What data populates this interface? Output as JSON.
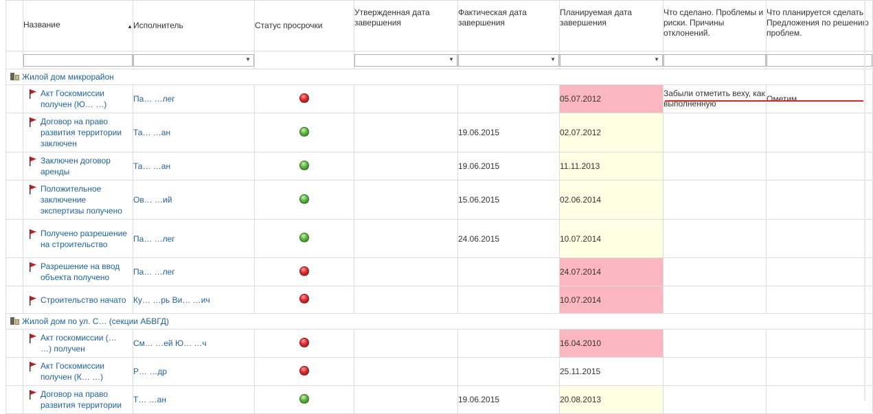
{
  "columns": {
    "name": "Название",
    "executor": "Исполнитель",
    "overdue_status": "Статус просрочки",
    "approved_date": "Утвержденная дата завершения",
    "actual_date": "Фактическая дата завершения",
    "planned_date": "Планируемая дата завершения",
    "done_problems": "Что сделано. Проблемы и риски. Причины отклонений.",
    "planned_proposals": "Что планируется сделать. Предложения по решению проблем."
  },
  "colors": {
    "link": "#1a62a8",
    "overdue_pink": "#fbb7c0",
    "pending_yellow": "#ffffe3",
    "status_red": "#e12b2b",
    "status_green": "#59b63c",
    "annotation_red": "#e2231a"
  },
  "groups": [
    {
      "label_visible": "Жилой дом микрорайон",
      "icon": "folder-icon",
      "rows": [
        {
          "name": "Акт Госкомиссии получен (Ю… …)",
          "executor": "Па… …лег",
          "status": "red",
          "approved": "",
          "actual": "",
          "planned": "05.07.2012",
          "planned_fill": "pink",
          "done": "Забыли отметить веху, как выполненную",
          "plan": "Ометим"
        },
        {
          "name": "Договор на право развития территории заключен",
          "executor": "Та… …ан",
          "status": "green",
          "approved": "",
          "actual": "19.06.2015",
          "planned": "02.07.2012",
          "planned_fill": "yellow",
          "done": "",
          "plan": ""
        },
        {
          "name": "Заключен договор аренды",
          "executor": "Та… …ан",
          "status": "green",
          "approved": "",
          "actual": "19.06.2015",
          "planned": "11.11.2013",
          "planned_fill": "yellow",
          "done": "",
          "plan": ""
        },
        {
          "name": "Положительное заключение экспертизы получено",
          "executor": "Ов… …ий",
          "status": "green",
          "approved": "",
          "actual": "15.06.2015",
          "planned": "02.06.2014",
          "planned_fill": "yellow",
          "done": "",
          "plan": ""
        },
        {
          "name": "Получено разрешение на строительство",
          "executor": "Па… …лег",
          "status": "green",
          "approved": "",
          "actual": "24.06.2015",
          "planned": "10.07.2014",
          "planned_fill": "yellow",
          "done": "",
          "plan": ""
        },
        {
          "name": "Разрешение на ввод объекта получено",
          "executor": "Па… …лег",
          "status": "red",
          "approved": "",
          "actual": "",
          "planned": "24.07.2014",
          "planned_fill": "pink",
          "done": "",
          "plan": ""
        },
        {
          "name": "Строительство начато",
          "executor": "Ку… …рь Ви… …ич",
          "status": "red",
          "approved": "",
          "actual": "",
          "planned": "10.07.2014",
          "planned_fill": "pink",
          "done": "",
          "plan": ""
        }
      ]
    },
    {
      "label_visible": "Жилой дом по ул. С… (секции АБВГД)",
      "icon": "folder-icon",
      "rows": [
        {
          "name": "Акт госкомиссии (… …) получен",
          "executor": "См… …ей Ю… …ч",
          "status": "red",
          "approved": "",
          "actual": "",
          "planned": "16.04.2010",
          "planned_fill": "pink",
          "done": "",
          "plan": ""
        },
        {
          "name": "Акт Госкомиссии получен (К… …)",
          "executor": "Р… …др",
          "status": "red",
          "approved": "",
          "actual": "",
          "planned": "25.11.2015",
          "planned_fill": "none",
          "done": "",
          "plan": ""
        },
        {
          "name": "Договор на право развития территории",
          "executor": "Т… …ан",
          "status": "green",
          "approved": "",
          "actual": "19.06.2015",
          "planned": "20.08.2013",
          "planned_fill": "yellow",
          "done": "",
          "plan": ""
        }
      ]
    }
  ]
}
